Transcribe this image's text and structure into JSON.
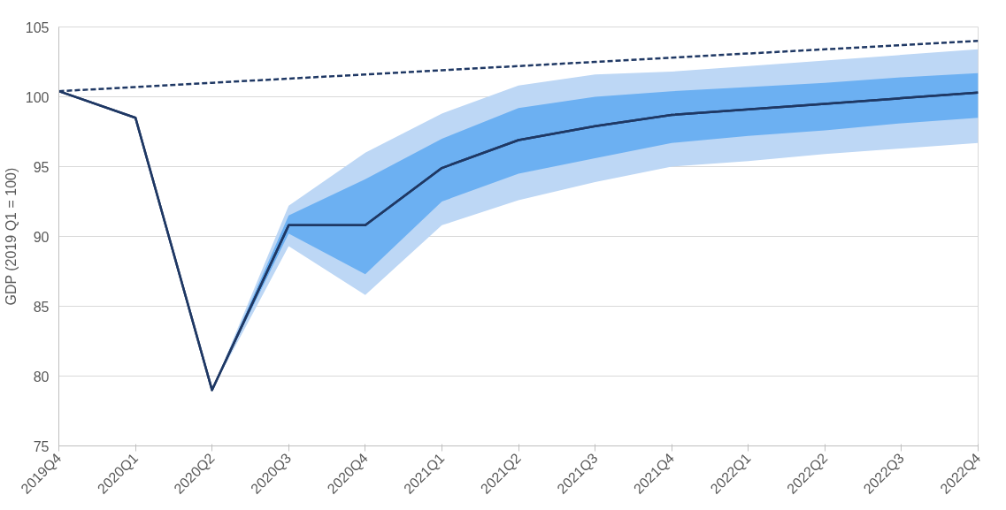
{
  "chart_data": {
    "type": "line",
    "ylabel": "GDP (2019 Q1 = 100)",
    "categories": [
      "2019Q4",
      "2020Q1",
      "2020Q2",
      "2020Q3",
      "2020Q4",
      "2021Q1",
      "2021Q2",
      "2021Q3",
      "2021Q4",
      "2022Q1",
      "2022Q2",
      "2022Q3",
      "2022Q4"
    ],
    "ylim": [
      75,
      105
    ],
    "yticks": [
      75,
      80,
      85,
      90,
      95,
      100,
      105
    ],
    "grid": "y",
    "marker": "none",
    "series": [
      {
        "color": "#1f3864",
        "values": [
          100.4,
          98.5,
          79.0,
          90.8,
          90.8,
          94.9,
          96.9,
          97.9,
          98.7,
          99.1,
          99.5,
          99.9,
          100.3
        ],
        "lower": [
          null,
          null,
          79.0,
          89.3,
          85.8,
          90.8,
          92.6,
          93.9,
          95.0,
          95.4,
          95.9,
          96.3,
          96.7
        ],
        "upper": [
          null,
          null,
          79.0,
          92.2,
          96.0,
          98.8,
          100.8,
          101.6,
          101.8,
          102.2,
          102.6,
          103.0,
          103.4
        ]
      },
      {
        "color": "#1f3864",
        "values": [
          100.4,
          98.5,
          79.0,
          90.8,
          90.8,
          94.9,
          96.9,
          97.9,
          98.7,
          99.1,
          99.5,
          99.9,
          100.3
        ],
        "lower": [
          null,
          null,
          79.0,
          90.2,
          87.3,
          92.5,
          94.5,
          95.6,
          96.7,
          97.2,
          97.6,
          98.1,
          98.5
        ],
        "upper": [
          null,
          null,
          79.0,
          91.5,
          94.1,
          97.0,
          99.2,
          100.0,
          100.4,
          100.7,
          101.0,
          101.4,
          101.7
        ]
      },
      {
        "color": "#1f3864",
        "line_style": "dashed",
        "values": [
          100.4,
          100.7,
          101.0,
          101.3,
          101.6,
          101.9,
          102.2,
          102.5,
          102.8,
          103.1,
          103.4,
          103.7,
          104.0
        ]
      }
    ]
  }
}
